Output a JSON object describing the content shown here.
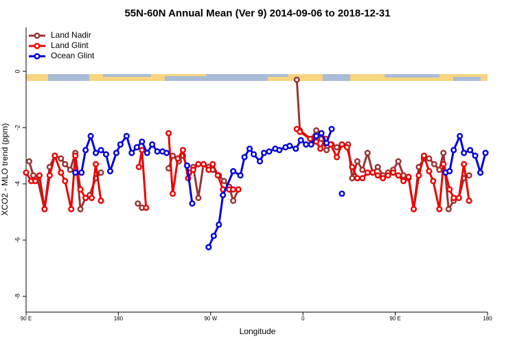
{
  "chart_data": {
    "type": "line",
    "title": "55N-60N Annual Mean (Ver 9)   2014-09-06 to 2018-12-31",
    "x_label": "Longitude",
    "y_label": "XCO2 - MLO trend (ppm)",
    "xlim": [
      90,
      540
    ],
    "xticks": [
      {
        "value": 90,
        "label": "90 E"
      },
      180,
      {
        "value": 270,
        "label": "90 W"
      },
      {
        "value": 360,
        "label": "0"
      },
      {
        "value": 450,
        "label": "90 E"
      },
      {
        "value": 540,
        "label": "180"
      }
    ],
    "ylim": [
      -8.56,
      1.56
    ],
    "yticks": [
      0,
      -2,
      -4,
      -6,
      -8
    ],
    "legend": "top-left",
    "series": [
      {
        "name": "Land Nadir",
        "color": "#993333",
        "x": [
          93,
          97,
          101,
          108,
          113,
          118,
          124,
          128,
          133,
          138,
          143,
          148,
          152,
          158,
          163,
          null,
          199,
          203,
          null,
          229,
          233,
          239,
          243,
          249,
          253,
          258,
          263,
          268,
          272,
          278,
          283,
          288,
          292,
          297,
          null,
          354,
          357,
          368,
          373,
          378,
          383,
          388,
          393,
          398,
          404,
          408,
          413,
          418,
          423,
          428,
          433,
          438,
          443,
          448,
          453,
          458,
          463,
          468,
          473,
          478,
          483,
          488,
          493,
          497,
          502,
          507,
          512,
          517,
          522
        ],
        "values": [
          -3.2,
          -3.7,
          -3.8,
          -4.9,
          -3.4,
          -3.0,
          -3.1,
          -3.3,
          -3.5,
          -2.9,
          -4.9,
          -4.5,
          -4.4,
          -3.8,
          -3.6,
          null,
          -4.7,
          -4.85,
          null,
          -3.45,
          -3.0,
          -3.2,
          -3.0,
          -3.6,
          -3.4,
          -4.5,
          -3.3,
          -3.4,
          -3.5,
          -3.7,
          -3.9,
          -4.1,
          -4.6,
          -4.2,
          null,
          -0.3,
          -2.1,
          -2.4,
          -2.1,
          -2.4,
          -2.8,
          -2.6,
          -2.7,
          -2.6,
          -2.6,
          -3.8,
          -3.2,
          -3.5,
          -2.9,
          -3.6,
          -3.4,
          -3.7,
          -3.6,
          -3.5,
          -3.2,
          -3.7,
          -3.8,
          -4.9,
          -3.4,
          -3.1,
          -3.1,
          -3.3,
          -3.5,
          -2.9,
          -4.9,
          -4.6,
          -4.5,
          -3.8,
          -3.7
        ]
      },
      {
        "name": "Land Glint",
        "color": "#ee0000",
        "x": [
          90,
          95,
          99,
          103,
          108,
          113,
          118,
          124,
          128,
          134,
          138,
          143,
          148,
          154,
          158,
          163,
          null,
          200,
          203,
          207,
          null,
          229,
          233,
          238,
          243,
          248,
          253,
          258,
          263,
          268,
          272,
          277,
          282,
          288,
          292,
          297,
          null,
          354,
          357,
          367,
          373,
          377,
          382,
          387,
          393,
          398,
          403,
          408,
          413,
          418,
          423,
          428,
          433,
          438,
          443,
          448,
          453,
          458,
          463,
          468,
          473,
          478,
          483,
          487,
          493,
          497,
          503,
          507,
          512,
          517,
          522
        ],
        "values": [
          -3.6,
          -3.9,
          -3.9,
          -3.7,
          -4.9,
          -3.7,
          -3.0,
          -3.6,
          -3.9,
          -4.9,
          -3.0,
          -4.2,
          -4.5,
          -4.5,
          -3.3,
          -4.6,
          null,
          -3.4,
          -2.8,
          -4.85,
          null,
          -2.2,
          -4.35,
          -3.1,
          -2.8,
          -3.8,
          -3.5,
          -3.3,
          -3.3,
          -3.5,
          -3.3,
          -3.7,
          -4.2,
          -4.2,
          -4.2,
          -4.2,
          null,
          -2.05,
          -2.15,
          -2.4,
          -2.5,
          -2.75,
          -2.4,
          -2.6,
          -3.05,
          -2.6,
          -2.7,
          -3.4,
          -3.8,
          -3.8,
          -3.6,
          -3.6,
          -3.7,
          -3.8,
          -3.7,
          -3.6,
          -3.7,
          -3.9,
          -3.75,
          -4.9,
          -3.7,
          -3.0,
          -3.55,
          -3.9,
          -4.9,
          -3.3,
          -4.2,
          -4.5,
          -4.5,
          -3.3,
          -4.6
        ]
      },
      {
        "name": "Ocean Glint",
        "color": "#0000dd",
        "x": [
          138,
          144,
          148,
          153,
          158,
          163,
          168,
          172,
          178,
          182,
          188,
          193,
          198,
          203,
          208,
          213,
          218,
          223,
          227,
          null,
          247,
          252,
          null,
          268,
          273,
          278,
          282,
          292,
          299,
          303,
          308,
          312,
          318,
          322,
          327,
          333,
          337,
          343,
          347,
          353,
          358,
          363,
          368,
          373,
          378,
          383,
          388,
          null,
          398,
          null,
          499,
          503,
          507,
          513,
          517,
          523,
          528,
          533,
          538
        ],
        "values": [
          -3.6,
          -3.6,
          -2.8,
          -2.3,
          -2.9,
          -2.8,
          -2.95,
          -3.55,
          -2.9,
          -2.6,
          -2.3,
          -2.9,
          -2.7,
          -2.5,
          -2.9,
          -2.6,
          -2.85,
          -2.85,
          -2.9,
          null,
          -3.35,
          -4.7,
          null,
          -6.25,
          -5.85,
          -5.45,
          -4.4,
          -3.55,
          -3.7,
          -3.05,
          -2.75,
          -2.95,
          -3.2,
          -2.9,
          -2.85,
          -2.75,
          -2.8,
          -2.7,
          -2.65,
          -2.75,
          -2.45,
          -2.6,
          -2.6,
          -2.3,
          -2.2,
          -2.55,
          -2.05,
          null,
          -4.35,
          null,
          -3.6,
          -3.55,
          -2.8,
          -2.3,
          -2.9,
          -2.8,
          -3.0,
          -3.6,
          -2.9
        ]
      }
    ]
  }
}
